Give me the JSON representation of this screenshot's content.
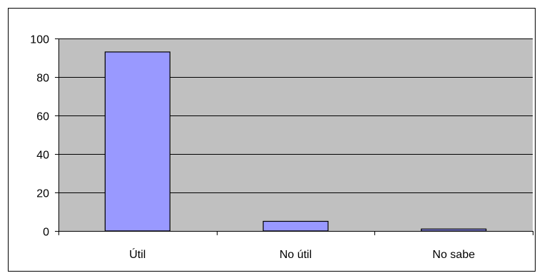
{
  "chart_data": {
    "type": "bar",
    "title": "",
    "xlabel": "",
    "ylabel": "",
    "categories": [
      "Útil",
      "No útil",
      "No sabe"
    ],
    "values": [
      93,
      5,
      1
    ],
    "ylim": [
      0,
      100
    ],
    "yticks": [
      0,
      20,
      40,
      60,
      80,
      100
    ],
    "ytick_labels": [
      "0",
      "20",
      "40",
      "60",
      "80",
      "100"
    ],
    "grid": true,
    "legend": "none",
    "colors": {
      "bar_fill": "#9999ff",
      "bar_stroke": "#000000",
      "plot_background": "#c0c0c0",
      "gridline": "#000000",
      "frame": "#000000"
    }
  }
}
